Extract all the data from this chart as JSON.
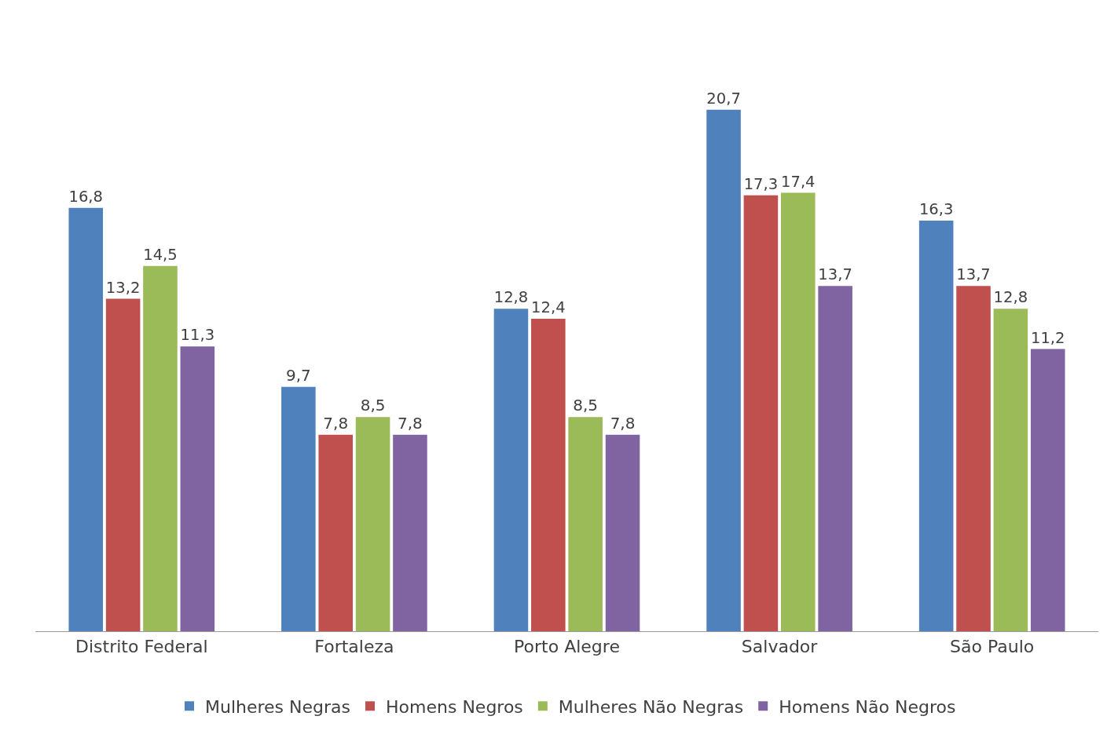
{
  "chart_data": {
    "type": "bar",
    "categories": [
      "Distrito Federal",
      "Fortaleza",
      "Porto Alegre",
      "Salvador",
      "São Paulo"
    ],
    "series": [
      {
        "name": "Mulheres Negras",
        "color": "#4f81bd",
        "values": [
          16.8,
          9.7,
          12.8,
          20.7,
          16.3
        ],
        "value_labels": [
          "16,8",
          "9,7",
          "12,8",
          "20,7",
          "16,3"
        ]
      },
      {
        "name": "Homens Negros",
        "color": "#c0504d",
        "values": [
          13.2,
          7.8,
          12.4,
          17.3,
          13.7
        ],
        "value_labels": [
          "13,2",
          "7,8",
          "12,4",
          "17,3",
          "13,7"
        ]
      },
      {
        "name": "Mulheres Não Negras",
        "color": "#9bbb59",
        "values": [
          14.5,
          8.5,
          8.5,
          17.4,
          12.8
        ],
        "value_labels": [
          "14,5",
          "8,5",
          "8,5",
          "17,4",
          "12,8"
        ]
      },
      {
        "name": "Homens Não Negros",
        "color": "#8064a2",
        "values": [
          11.3,
          7.8,
          7.8,
          13.7,
          11.2
        ],
        "value_labels": [
          "11,3",
          "7,8",
          "7,8",
          "13,7",
          "11,2"
        ]
      }
    ],
    "legend": "bottom"
  }
}
